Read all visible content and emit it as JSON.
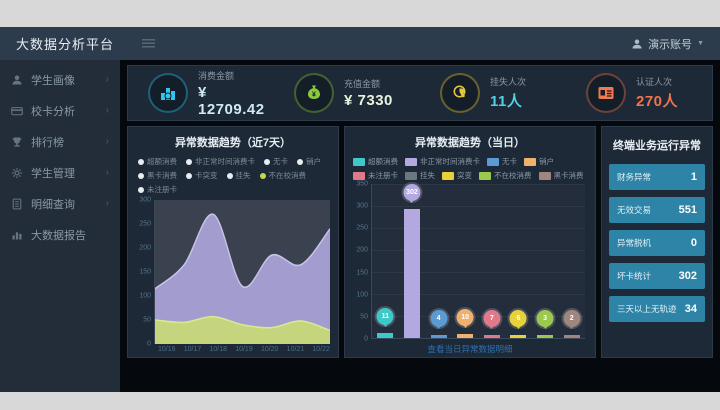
{
  "topbar": {
    "title": "大数据分析平台",
    "user": "演示账号"
  },
  "sidebar": {
    "items": [
      {
        "label": "学生画像",
        "icon": "person-icon"
      },
      {
        "label": "校卡分析",
        "icon": "card-icon"
      },
      {
        "label": "排行榜",
        "icon": "trophy-icon"
      },
      {
        "label": "学生管理",
        "icon": "gear-icon"
      },
      {
        "label": "明细查询",
        "icon": "document-icon"
      },
      {
        "label": "大数据报告",
        "icon": "report-icon"
      }
    ]
  },
  "kpis": [
    {
      "label": "消费金额",
      "value": "¥ 12709.42",
      "icon": "bar-chart-icon",
      "icon_color": "#2ec6ee",
      "value_color": "#cfe9f5"
    },
    {
      "label": "充值金额",
      "value": "¥ 7330",
      "icon": "money-bag-icon",
      "icon_color": "#8bc93d",
      "value_color": "#e8f3e0"
    },
    {
      "label": "挂失人次",
      "value": "11人",
      "icon": "hand-click-icon",
      "icon_color": "#e7c93f",
      "value_color": "#4fd2e8"
    },
    {
      "label": "认证人次",
      "value": "270人",
      "icon": "id-card-icon",
      "icon_color": "#ef7a52",
      "value_color": "#f2734d"
    }
  ],
  "chart_data": [
    {
      "type": "area",
      "title": "异常数据趋势（近7天）",
      "x": [
        "10/16",
        "10/17",
        "10/18",
        "10/19",
        "10/20",
        "10/21",
        "10/22"
      ],
      "ylim": [
        0,
        300
      ],
      "yticks": [
        0,
        50,
        100,
        150,
        200,
        250,
        300
      ],
      "grid": false,
      "legend_position": "top",
      "legend": [
        {
          "label": "超额消费",
          "dot": "#e8edf2"
        },
        {
          "label": "非正常时间消费卡",
          "dot": "#e8edf2"
        },
        {
          "label": "无卡",
          "dot": "#e8edf2"
        },
        {
          "label": "销户",
          "dot": "#e8edf2"
        },
        {
          "label": "黑卡消费",
          "dot": "#e8edf2"
        },
        {
          "label": "卡突变",
          "dot": "#e8edf2"
        },
        {
          "label": "挂失",
          "dot": "#e8edf2"
        },
        {
          "label": "不在校消费",
          "dot": "#c3d84e"
        },
        {
          "label": "未注册卡",
          "dot": "#e8edf2"
        }
      ],
      "series": [
        {
          "name": "非正常时间消费卡",
          "color": "#a9a1d6",
          "stroke": "#c9c3e8",
          "values": [
            115,
            165,
            270,
            120,
            185,
            165,
            240
          ]
        },
        {
          "name": "不在校消费",
          "color": "#c6d878",
          "stroke": "#d9e890",
          "values": [
            50,
            45,
            57,
            40,
            34,
            48,
            28
          ]
        }
      ]
    },
    {
      "type": "bar",
      "title": "异常数据趋势（当日）",
      "ylim": [
        0,
        350
      ],
      "yticks": [
        0,
        50,
        100,
        150,
        200,
        250,
        300,
        350
      ],
      "grid": true,
      "legend_position": "top",
      "legend": [
        {
          "label": "超额消费",
          "color": "#3fc8c8"
        },
        {
          "label": "非正常时间消费卡",
          "color": "#b3a8e0"
        },
        {
          "label": "无卡",
          "color": "#5b9bd5"
        },
        {
          "label": "销户",
          "color": "#f2b06e"
        },
        {
          "label": "未注册卡",
          "color": "#e07a8a"
        },
        {
          "label": "挂失",
          "color": "#6e7680"
        },
        {
          "label": "突变",
          "color": "#e8d23a"
        },
        {
          "label": "不在校消费",
          "color": "#9ac94e"
        },
        {
          "label": "黑卡消费",
          "color": "#a0867e"
        }
      ],
      "categories": [
        "超额消费",
        "非正常时间消费卡",
        "无卡",
        "销户",
        "未注册卡",
        "突变",
        "不在校消费",
        "黑卡消费"
      ],
      "values": [
        11,
        302,
        4,
        10,
        7,
        6,
        3,
        2
      ],
      "colors": [
        "#3fc8c8",
        "#b3a8e0",
        "#5b9bd5",
        "#f2b06e",
        "#e07a8a",
        "#e8d23a",
        "#9ac94e",
        "#a0867e"
      ],
      "footer": "查看当日异常数据明细"
    }
  ],
  "terminal_panel": {
    "title": "终端业务运行异常",
    "rows": [
      {
        "label": "财务异常",
        "value": "1"
      },
      {
        "label": "无效交易",
        "value": "551"
      },
      {
        "label": "异常脱机",
        "value": "0"
      },
      {
        "label": "坏卡统计",
        "value": "302"
      },
      {
        "label": "三天以上无轨迹",
        "value": "34"
      }
    ]
  },
  "colors": {
    "topbar_bg": "#2d3c4c",
    "sidebar_bg": "#222d39",
    "panel_bg": "#1d2936",
    "stat_row_bg": "#2d84a6",
    "footer_link": "#2f6fae",
    "dashboard_bg": "#05080d"
  }
}
